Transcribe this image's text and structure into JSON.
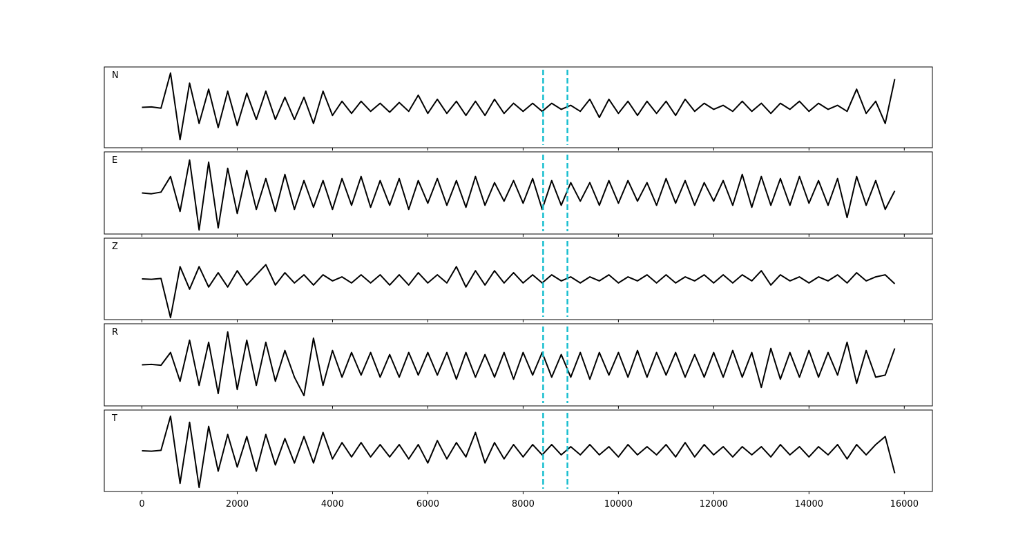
{
  "chart_data": {
    "type": "line",
    "x": [
      0,
      200,
      400,
      600,
      800,
      1000,
      1200,
      1400,
      1600,
      1800,
      2000,
      2200,
      2400,
      2600,
      2800,
      3000,
      3200,
      3400,
      3600,
      3800,
      4000,
      4200,
      4400,
      4600,
      4800,
      5000,
      5200,
      5400,
      5600,
      5800,
      6000,
      6200,
      6400,
      6600,
      6800,
      7000,
      7200,
      7400,
      7600,
      7800,
      8000,
      8200,
      8400,
      8600,
      8800,
      9000,
      9200,
      9400,
      9600,
      9800,
      10000,
      10200,
      10400,
      10600,
      10800,
      11000,
      11200,
      11400,
      11600,
      11800,
      12000,
      12200,
      12400,
      12600,
      12800,
      13000,
      13200,
      13400,
      13600,
      13800,
      14000,
      14200,
      14400,
      14600,
      14800,
      15000,
      15200,
      15400,
      15600,
      15800
    ],
    "xlim": [
      -790,
      16590
    ],
    "xticks": [
      0,
      2000,
      4000,
      6000,
      8000,
      10000,
      12000,
      14000,
      16000
    ],
    "ylim": [
      -1,
      1
    ],
    "color": "#000000",
    "vlines": [
      8420,
      8930
    ],
    "vline_color": "#17becf",
    "series": [
      {
        "name": "N",
        "values": [
          0,
          0.01,
          -0.02,
          0.85,
          -0.8,
          0.6,
          -0.4,
          0.45,
          -0.5,
          0.4,
          -0.45,
          0.35,
          -0.3,
          0.4,
          -0.3,
          0.25,
          -0.3,
          0.25,
          -0.4,
          0.4,
          -0.2,
          0.15,
          -0.15,
          0.15,
          -0.1,
          0.1,
          -0.12,
          0.12,
          -0.1,
          0.3,
          -0.15,
          0.2,
          -0.15,
          0.15,
          -0.2,
          0.15,
          -0.2,
          0.2,
          -0.15,
          0.1,
          -0.1,
          0.1,
          -0.1,
          0.1,
          -0.05,
          0.05,
          -0.1,
          0.2,
          -0.25,
          0.2,
          -0.15,
          0.15,
          -0.2,
          0.15,
          -0.15,
          0.15,
          -0.2,
          0.2,
          -0.1,
          0.1,
          -0.05,
          0.05,
          -0.1,
          0.15,
          -0.1,
          0.1,
          -0.15,
          0.1,
          -0.05,
          0.15,
          -0.1,
          0.1,
          -0.05,
          0.05,
          -0.1,
          0.45,
          -0.15,
          0.15,
          -0.4,
          0.7
        ]
      },
      {
        "name": "E",
        "values": [
          0,
          -0.02,
          0.02,
          0.4,
          -0.45,
          0.8,
          -0.9,
          0.75,
          -0.85,
          0.6,
          -0.5,
          0.55,
          -0.4,
          0.35,
          -0.45,
          0.45,
          -0.4,
          0.3,
          -0.35,
          0.3,
          -0.4,
          0.35,
          -0.3,
          0.4,
          -0.35,
          0.3,
          -0.3,
          0.35,
          -0.4,
          0.3,
          -0.25,
          0.35,
          -0.3,
          0.3,
          -0.35,
          0.4,
          -0.3,
          0.25,
          -0.2,
          0.3,
          -0.25,
          0.35,
          -0.4,
          0.3,
          -0.3,
          0.25,
          -0.2,
          0.25,
          -0.3,
          0.3,
          -0.25,
          0.3,
          -0.2,
          0.25,
          -0.3,
          0.35,
          -0.25,
          0.3,
          -0.3,
          0.25,
          -0.2,
          0.3,
          -0.3,
          0.45,
          -0.35,
          0.4,
          -0.3,
          0.35,
          -0.3,
          0.4,
          -0.25,
          0.3,
          -0.3,
          0.35,
          -0.6,
          0.4,
          -0.3,
          0.3,
          -0.4,
          0.05
        ]
      },
      {
        "name": "Z",
        "values": [
          0,
          -0.01,
          0.01,
          -0.95,
          0.3,
          -0.25,
          0.3,
          -0.2,
          0.15,
          -0.2,
          0.2,
          -0.15,
          0.1,
          0.35,
          -0.15,
          0.15,
          -0.1,
          0.1,
          -0.15,
          0.1,
          -0.05,
          0.05,
          -0.1,
          0.1,
          -0.1,
          0.1,
          -0.15,
          0.1,
          -0.15,
          0.15,
          -0.1,
          0.1,
          -0.1,
          0.3,
          -0.2,
          0.2,
          -0.15,
          0.2,
          -0.1,
          0.15,
          -0.1,
          0.1,
          -0.1,
          0.1,
          -0.05,
          0.05,
          -0.1,
          0.05,
          -0.05,
          0.1,
          -0.1,
          0.05,
          -0.05,
          0.1,
          -0.1,
          0.1,
          -0.1,
          0.05,
          -0.05,
          0.1,
          -0.1,
          0.1,
          -0.1,
          0.1,
          -0.05,
          0.2,
          -0.15,
          0.1,
          -0.05,
          0.05,
          -0.1,
          0.05,
          -0.05,
          0.1,
          -0.1,
          0.15,
          -0.05,
          0.05,
          0.1,
          -0.12
        ]
      },
      {
        "name": "R",
        "values": [
          0,
          0.01,
          -0.01,
          0.3,
          -0.4,
          0.6,
          -0.5,
          0.55,
          -0.7,
          0.8,
          -0.6,
          0.6,
          -0.5,
          0.55,
          -0.4,
          0.35,
          -0.3,
          -0.75,
          0.65,
          -0.5,
          0.35,
          -0.3,
          0.3,
          -0.25,
          0.3,
          -0.3,
          0.25,
          -0.3,
          0.3,
          -0.25,
          0.3,
          -0.25,
          0.3,
          -0.35,
          0.3,
          -0.3,
          0.25,
          -0.3,
          0.3,
          -0.35,
          0.3,
          -0.25,
          0.3,
          -0.3,
          0.25,
          -0.3,
          0.3,
          -0.35,
          0.3,
          -0.25,
          0.3,
          -0.3,
          0.35,
          -0.3,
          0.3,
          -0.25,
          0.3,
          -0.3,
          0.25,
          -0.3,
          0.3,
          -0.3,
          0.35,
          -0.3,
          0.3,
          -0.55,
          0.4,
          -0.35,
          0.3,
          -0.3,
          0.35,
          -0.3,
          0.3,
          -0.25,
          0.55,
          -0.45,
          0.35,
          -0.3,
          -0.25,
          0.4
        ]
      },
      {
        "name": "T",
        "values": [
          0,
          -0.01,
          0.01,
          0.85,
          -0.8,
          0.7,
          -0.9,
          0.6,
          -0.5,
          0.4,
          -0.4,
          0.35,
          -0.5,
          0.4,
          -0.35,
          0.3,
          -0.3,
          0.35,
          -0.3,
          0.45,
          -0.2,
          0.2,
          -0.15,
          0.2,
          -0.15,
          0.15,
          -0.15,
          0.15,
          -0.2,
          0.15,
          -0.3,
          0.25,
          -0.2,
          0.2,
          -0.15,
          0.45,
          -0.3,
          0.2,
          -0.2,
          0.15,
          -0.15,
          0.15,
          -0.1,
          0.15,
          -0.1,
          0.1,
          -0.1,
          0.15,
          -0.1,
          0.1,
          -0.15,
          0.15,
          -0.1,
          0.1,
          -0.1,
          0.15,
          -0.15,
          0.2,
          -0.15,
          0.15,
          -0.1,
          0.1,
          -0.15,
          0.1,
          -0.1,
          0.1,
          -0.15,
          0.15,
          -0.1,
          0.1,
          -0.15,
          0.1,
          -0.1,
          0.15,
          -0.2,
          0.15,
          -0.1,
          0.15,
          0.35,
          -0.55
        ]
      }
    ]
  }
}
